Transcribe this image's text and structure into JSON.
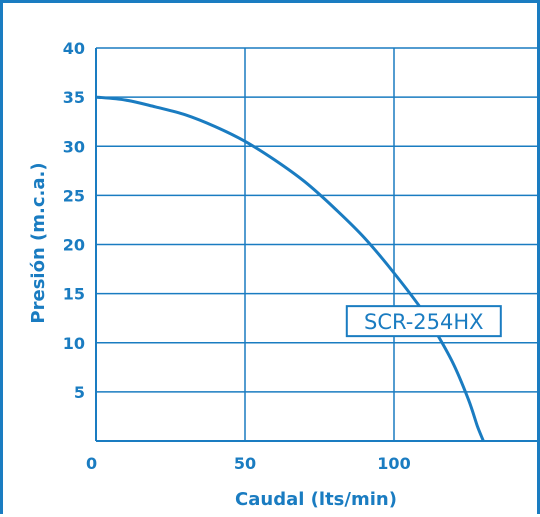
{
  "chart_data": {
    "type": "line",
    "xlabel": "Caudal (lts/min)",
    "ylabel": "Presión (m.c.a.)",
    "xlim": [
      0,
      150
    ],
    "ylim": [
      0,
      40
    ],
    "x_ticks": [
      "0",
      "50",
      "100"
    ],
    "x_tick_values": [
      0,
      50,
      100
    ],
    "y_ticks": [
      "5",
      "10",
      "15",
      "20",
      "25",
      "30",
      "35",
      "40"
    ],
    "y_tick_values": [
      5,
      10,
      15,
      20,
      25,
      30,
      35,
      40
    ],
    "grid": true,
    "colors": {
      "line": "#1a7cc1",
      "text": "#1a7cc1",
      "grid": "#1a7cc1"
    },
    "series": [
      {
        "name": "SCR-254HX",
        "x": [
          0,
          10,
          20,
          30,
          40,
          50,
          60,
          70,
          80,
          90,
          100,
          110,
          115,
          120,
          125,
          128,
          130
        ],
        "y": [
          35,
          34.7,
          34,
          33.2,
          32,
          30.5,
          28.6,
          26.4,
          23.7,
          20.7,
          17.1,
          13.1,
          10.6,
          7.8,
          4.2,
          1.5,
          0
        ]
      }
    ],
    "series_label_at": {
      "x": 110,
      "y": 12.2
    }
  }
}
